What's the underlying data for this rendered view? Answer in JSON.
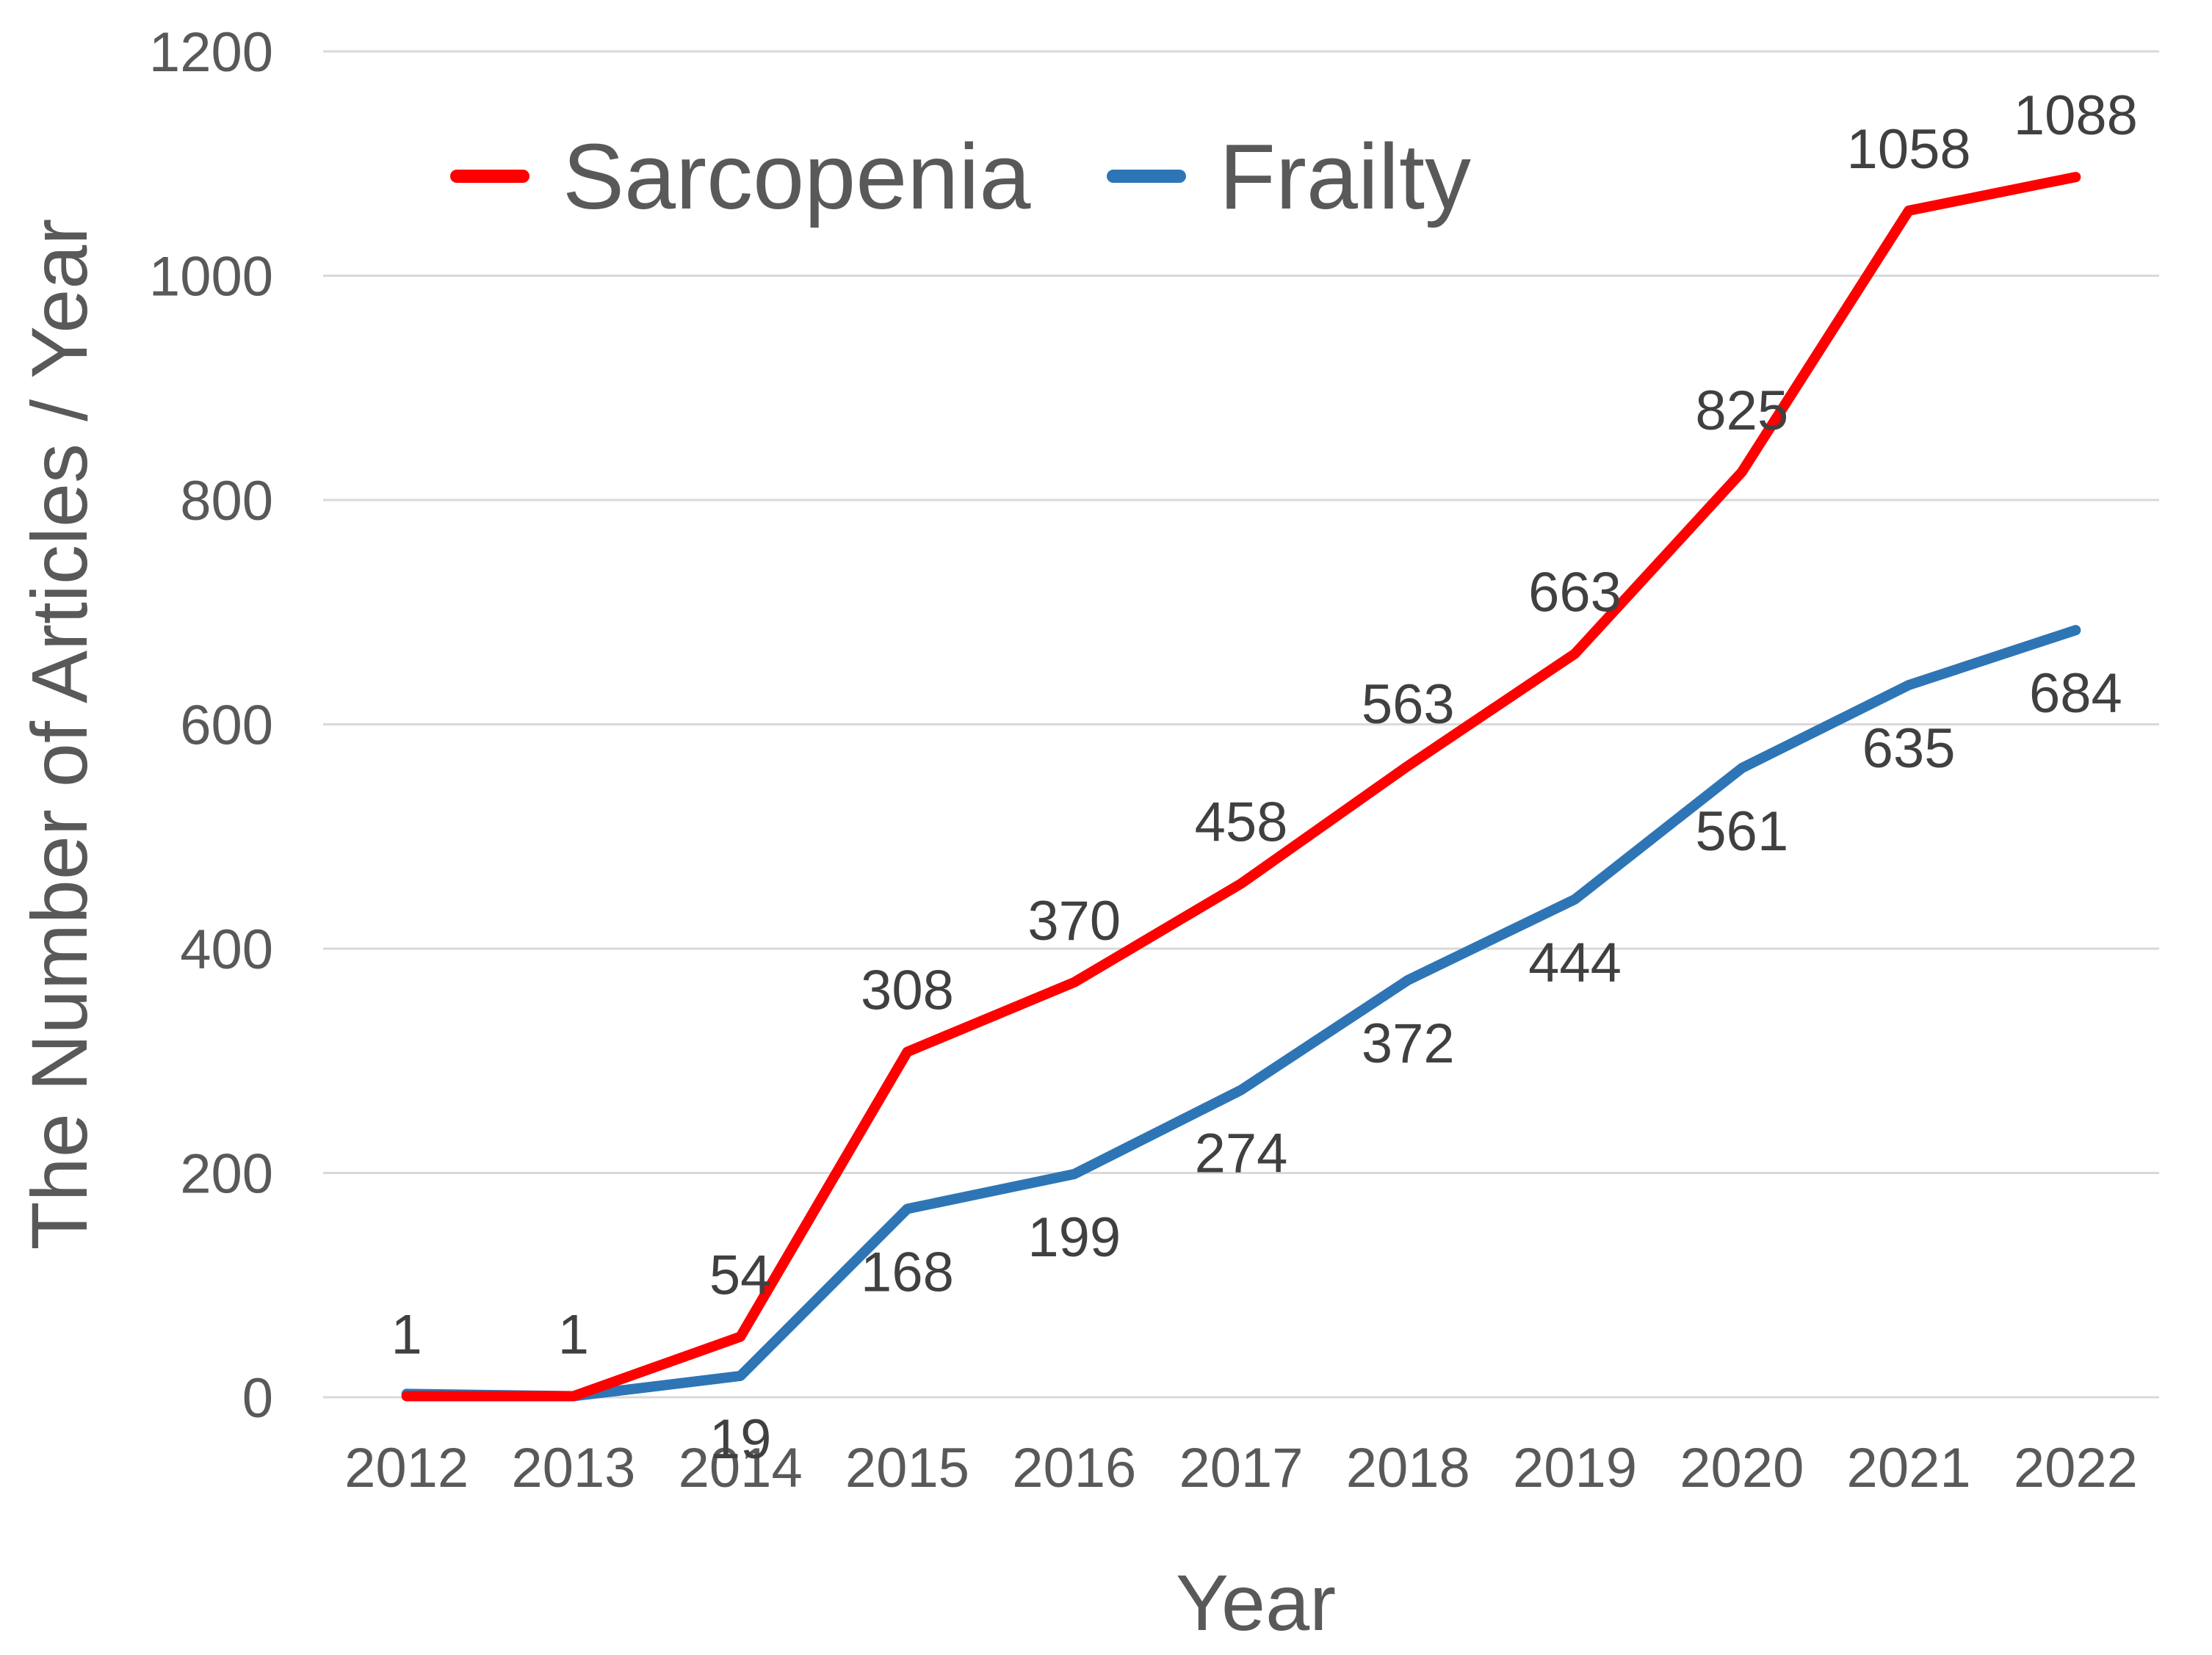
{
  "chart_data": {
    "type": "line",
    "title": "",
    "xlabel": "Year",
    "ylabel": "The Number of Articles / Year",
    "ylim": [
      0,
      1200
    ],
    "yticks": [
      0,
      200,
      400,
      600,
      800,
      1000,
      1200
    ],
    "grid": true,
    "legend_position": "top-left",
    "categories": [
      "2012",
      "2013",
      "2014",
      "2015",
      "2016",
      "2017",
      "2018",
      "2019",
      "2020",
      "2021",
      "2022"
    ],
    "series": [
      {
        "name": "Sarcopenia",
        "color": "#ff0000",
        "values": [
          1,
          1,
          54,
          308,
          370,
          458,
          563,
          663,
          825,
          1058,
          1088
        ],
        "labels": [
          "1",
          "1",
          "54",
          "308",
          "370",
          "458",
          "563",
          "663",
          "825",
          "1058",
          "1088"
        ]
      },
      {
        "name": "Frailty",
        "color": "#2e75b6",
        "values": [
          3,
          1,
          19,
          168,
          199,
          274,
          372,
          444,
          561,
          635,
          684
        ],
        "labels": [
          "",
          "",
          "19",
          "168",
          "199",
          "274",
          "372",
          "444",
          "561",
          "635",
          "684"
        ]
      }
    ]
  }
}
